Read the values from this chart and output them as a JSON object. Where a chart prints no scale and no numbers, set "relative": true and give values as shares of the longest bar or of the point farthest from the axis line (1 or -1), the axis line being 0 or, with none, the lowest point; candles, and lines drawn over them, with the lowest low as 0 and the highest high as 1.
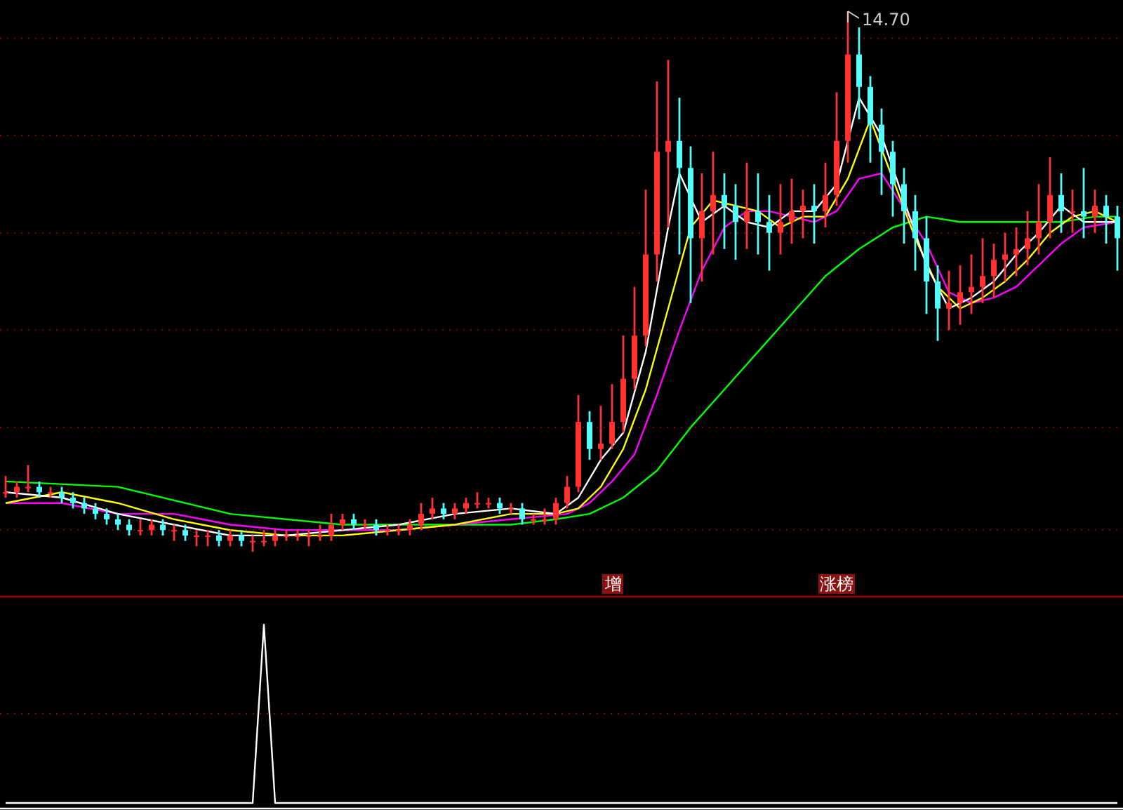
{
  "chart_data": [
    {
      "type": "candlestick",
      "relative": true,
      "ref_lines": [
        {
          "axis": "y",
          "value": 0.95,
          "color": "#8b0000",
          "line_style": "dotted"
        },
        {
          "axis": "y",
          "value": 0.77,
          "color": "#8b0000",
          "line_style": "dotted"
        },
        {
          "axis": "y",
          "value": 0.59,
          "color": "#8b0000",
          "line_style": "dotted"
        },
        {
          "axis": "y",
          "value": 0.41,
          "color": "#8b0000",
          "line_style": "dotted"
        },
        {
          "axis": "y",
          "value": 0.23,
          "color": "#8b0000",
          "line_style": "dotted"
        },
        {
          "axis": "y",
          "value": 0.04,
          "color": "#8b0000",
          "line_style": "dotted"
        }
      ],
      "categories": [
        null,
        null,
        null,
        null,
        null,
        null,
        null,
        null,
        null,
        null,
        null,
        null,
        null,
        null,
        null,
        null,
        null,
        null,
        null,
        null,
        null,
        null,
        null,
        null,
        null,
        null,
        null,
        null,
        null,
        null,
        null,
        null,
        null,
        null,
        null,
        null,
        null,
        null,
        null,
        null,
        null,
        null,
        null,
        null,
        null,
        null,
        null,
        null,
        null,
        null,
        null,
        null,
        null,
        null,
        null,
        null,
        null,
        null,
        null,
        null,
        null,
        null,
        null,
        null,
        null,
        null,
        null,
        null,
        null,
        null,
        null,
        null,
        null,
        null,
        null,
        null,
        null,
        null,
        null,
        null,
        null,
        null,
        null,
        null,
        null,
        null,
        null,
        null,
        null,
        null,
        null,
        null,
        null,
        null,
        null,
        null,
        null,
        null,
        null,
        null
      ],
      "annotations": [
        "14.70",
        "增",
        "涨榜"
      ],
      "series": [
        {
          "ohlc": [
            [
              0.11,
              0.14,
              0.1,
              0.11
            ],
            [
              0.11,
              0.13,
              0.1,
              0.12
            ],
            [
              0.12,
              0.16,
              0.11,
              0.12
            ],
            [
              0.12,
              0.13,
              0.1,
              0.11
            ],
            [
              0.11,
              0.12,
              0.1,
              0.11
            ],
            [
              0.11,
              0.12,
              0.09,
              0.1
            ],
            [
              0.1,
              0.11,
              0.08,
              0.09
            ],
            [
              0.09,
              0.1,
              0.07,
              0.08
            ],
            [
              0.08,
              0.09,
              0.06,
              0.07
            ],
            [
              0.07,
              0.08,
              0.05,
              0.06
            ],
            [
              0.06,
              0.07,
              0.04,
              0.05
            ],
            [
              0.05,
              0.06,
              0.03,
              0.04
            ],
            [
              0.04,
              0.06,
              0.03,
              0.04
            ],
            [
              0.04,
              0.06,
              0.03,
              0.05
            ],
            [
              0.05,
              0.06,
              0.03,
              0.04
            ],
            [
              0.04,
              0.05,
              0.02,
              0.04
            ],
            [
              0.04,
              0.05,
              0.02,
              0.03
            ],
            [
              0.03,
              0.04,
              0.01,
              0.03
            ],
            [
              0.03,
              0.04,
              0.01,
              0.03
            ],
            [
              0.03,
              0.04,
              0.01,
              0.02
            ],
            [
              0.02,
              0.04,
              0.01,
              0.03
            ],
            [
              0.03,
              0.04,
              0.01,
              0.02
            ],
            [
              0.02,
              0.03,
              0.0,
              0.02
            ],
            [
              0.02,
              0.04,
              0.01,
              0.02
            ],
            [
              0.02,
              0.04,
              0.01,
              0.03
            ],
            [
              0.03,
              0.04,
              0.02,
              0.03
            ],
            [
              0.03,
              0.04,
              0.02,
              0.03
            ],
            [
              0.03,
              0.04,
              0.01,
              0.03
            ],
            [
              0.03,
              0.05,
              0.02,
              0.03
            ],
            [
              0.03,
              0.07,
              0.02,
              0.05
            ],
            [
              0.05,
              0.07,
              0.04,
              0.06
            ],
            [
              0.06,
              0.07,
              0.04,
              0.05
            ],
            [
              0.05,
              0.06,
              0.04,
              0.05
            ],
            [
              0.05,
              0.06,
              0.03,
              0.04
            ],
            [
              0.04,
              0.05,
              0.03,
              0.04
            ],
            [
              0.04,
              0.05,
              0.03,
              0.04
            ],
            [
              0.04,
              0.06,
              0.03,
              0.05
            ],
            [
              0.05,
              0.09,
              0.04,
              0.07
            ],
            [
              0.07,
              0.1,
              0.06,
              0.08
            ],
            [
              0.08,
              0.09,
              0.06,
              0.07
            ],
            [
              0.07,
              0.09,
              0.06,
              0.08
            ],
            [
              0.08,
              0.1,
              0.07,
              0.09
            ],
            [
              0.09,
              0.11,
              0.08,
              0.09
            ],
            [
              0.09,
              0.1,
              0.08,
              0.09
            ],
            [
              0.09,
              0.1,
              0.07,
              0.08
            ],
            [
              0.08,
              0.09,
              0.07,
              0.08
            ],
            [
              0.08,
              0.09,
              0.05,
              0.06
            ],
            [
              0.06,
              0.07,
              0.05,
              0.06
            ],
            [
              0.06,
              0.08,
              0.05,
              0.06
            ],
            [
              0.06,
              0.1,
              0.05,
              0.09
            ],
            [
              0.09,
              0.14,
              0.08,
              0.12
            ],
            [
              0.12,
              0.29,
              0.11,
              0.24
            ],
            [
              0.24,
              0.26,
              0.17,
              0.19
            ],
            [
              0.19,
              0.27,
              0.17,
              0.2
            ],
            [
              0.2,
              0.31,
              0.19,
              0.24
            ],
            [
              0.24,
              0.4,
              0.22,
              0.32
            ],
            [
              0.32,
              0.49,
              0.3,
              0.4
            ],
            [
              0.4,
              0.67,
              0.38,
              0.55
            ],
            [
              0.55,
              0.87,
              0.5,
              0.74
            ],
            [
              0.74,
              0.91,
              0.6,
              0.76
            ],
            [
              0.76,
              0.84,
              0.55,
              0.71
            ],
            [
              0.71,
              0.75,
              0.46,
              0.58
            ],
            [
              0.58,
              0.7,
              0.5,
              0.63
            ],
            [
              0.63,
              0.74,
              0.55,
              0.66
            ],
            [
              0.66,
              0.7,
              0.56,
              0.64
            ],
            [
              0.64,
              0.68,
              0.54,
              0.61
            ],
            [
              0.61,
              0.72,
              0.56,
              0.63
            ],
            [
              0.63,
              0.7,
              0.55,
              0.61
            ],
            [
              0.61,
              0.66,
              0.52,
              0.59
            ],
            [
              0.59,
              0.68,
              0.55,
              0.61
            ],
            [
              0.61,
              0.69,
              0.57,
              0.63
            ],
            [
              0.63,
              0.67,
              0.58,
              0.64
            ],
            [
              0.64,
              0.68,
              0.57,
              0.63
            ],
            [
              0.63,
              0.72,
              0.6,
              0.66
            ],
            [
              0.66,
              0.85,
              0.64,
              0.76
            ],
            [
              0.76,
              1.0,
              0.72,
              0.92
            ],
            [
              0.92,
              0.97,
              0.8,
              0.86
            ],
            [
              0.86,
              0.88,
              0.72,
              0.79
            ],
            [
              0.79,
              0.82,
              0.66,
              0.74
            ],
            [
              0.74,
              0.76,
              0.62,
              0.68
            ],
            [
              0.68,
              0.71,
              0.57,
              0.63
            ],
            [
              0.63,
              0.66,
              0.52,
              0.58
            ],
            [
              0.58,
              0.62,
              0.44,
              0.5
            ],
            [
              0.5,
              0.53,
              0.39,
              0.45
            ],
            [
              0.45,
              0.52,
              0.41,
              0.46
            ],
            [
              0.46,
              0.53,
              0.42,
              0.48
            ],
            [
              0.48,
              0.55,
              0.44,
              0.49
            ],
            [
              0.49,
              0.58,
              0.46,
              0.51
            ],
            [
              0.51,
              0.57,
              0.47,
              0.54
            ],
            [
              0.54,
              0.59,
              0.5,
              0.55
            ],
            [
              0.55,
              0.6,
              0.51,
              0.56
            ],
            [
              0.56,
              0.63,
              0.53,
              0.58
            ],
            [
              0.58,
              0.68,
              0.55,
              0.61
            ],
            [
              0.61,
              0.73,
              0.58,
              0.66
            ],
            [
              0.66,
              0.7,
              0.59,
              0.63
            ],
            [
              0.63,
              0.67,
              0.59,
              0.63
            ],
            [
              0.63,
              0.71,
              0.58,
              0.62
            ],
            [
              0.62,
              0.67,
              0.59,
              0.64
            ],
            [
              0.64,
              0.66,
              0.57,
              0.62
            ],
            [
              0.62,
              0.64,
              0.52,
              0.58
            ]
          ],
          "colors": [
            "#ff3232",
            "#ff3232",
            "#ff3232",
            "#54fcfc",
            "#ff3232",
            "#54fcfc",
            "#54fcfc",
            "#54fcfc",
            "#54fcfc",
            "#54fcfc",
            "#54fcfc",
            "#54fcfc",
            "#ff3232",
            "#ff3232",
            "#54fcfc",
            "#ff3232",
            "#54fcfc",
            "#ff3232",
            "#ff3232",
            "#54fcfc",
            "#ff3232",
            "#54fcfc",
            "#ff3232",
            "#ff3232",
            "#ff3232",
            "#ff3232",
            "#ff3232",
            "#ff3232",
            "#ff3232",
            "#ff3232",
            "#ff3232",
            "#54fcfc",
            "#ff3232",
            "#54fcfc",
            "#ff3232",
            "#ff3232",
            "#ff3232",
            "#ff3232",
            "#ff3232",
            "#54fcfc",
            "#ff3232",
            "#ff3232",
            "#ff3232",
            "#ff3232",
            "#54fcfc",
            "#ff3232",
            "#54fcfc",
            "#ff3232",
            "#ff3232",
            "#ff3232",
            "#ff3232",
            "#ff3232",
            "#54fcfc",
            "#ff3232",
            "#ff3232",
            "#ff3232",
            "#ff3232",
            "#ff3232",
            "#ff3232",
            "#ff3232",
            "#54fcfc",
            "#54fcfc",
            "#ff3232",
            "#ff3232",
            "#54fcfc",
            "#54fcfc",
            "#ff3232",
            "#54fcfc",
            "#54fcfc",
            "#ff3232",
            "#ff3232",
            "#ff3232",
            "#54fcfc",
            "#ff3232",
            "#ff3232",
            "#ff3232",
            "#54fcfc",
            "#54fcfc",
            "#54fcfc",
            "#54fcfc",
            "#54fcfc",
            "#54fcfc",
            "#54fcfc",
            "#54fcfc",
            "#ff3232",
            "#ff3232",
            "#ff3232",
            "#ff3232",
            "#ff3232",
            "#ff3232",
            "#ff3232",
            "#ff3232",
            "#ff3232",
            "#ff3232",
            "#54fcfc",
            "#ff3232",
            "#54fcfc",
            "#ff3232",
            "#54fcfc",
            "#54fcfc"
          ]
        },
        {
          "type": "line",
          "color": "#00ff00",
          "values": [
            0.13,
            null,
            null,
            null,
            null,
            null,
            null,
            null,
            null,
            null,
            0.12,
            null,
            null,
            null,
            null,
            null,
            null,
            null,
            null,
            null,
            0.07,
            null,
            null,
            null,
            null,
            null,
            null,
            null,
            null,
            null,
            0.05,
            null,
            null,
            null,
            null,
            null,
            null,
            null,
            null,
            null,
            0.05,
            null,
            null,
            null,
            null,
            0.05,
            null,
            null,
            null,
            0.06,
            null,
            null,
            0.07,
            null,
            null,
            0.1,
            null,
            null,
            0.15,
            null,
            null,
            0.23,
            null,
            null,
            0.3,
            null,
            null,
            0.37,
            null,
            null,
            0.44,
            null,
            null,
            0.51,
            null,
            null,
            0.56,
            null,
            null,
            0.6,
            null,
            null,
            0.62,
            null,
            null,
            0.61,
            null,
            null,
            0.61,
            null,
            null,
            0.61,
            null,
            null,
            0.61,
            null,
            null,
            0.62,
            null,
            0.62
          ]
        },
        {
          "type": "line",
          "color": "#ff00ff",
          "values": [
            0.09,
            null,
            null,
            null,
            null,
            0.09,
            null,
            null,
            null,
            null,
            0.07,
            null,
            null,
            null,
            null,
            0.07,
            null,
            null,
            null,
            null,
            0.05,
            null,
            null,
            null,
            null,
            0.04,
            null,
            null,
            null,
            null,
            0.04,
            null,
            null,
            null,
            null,
            0.04,
            null,
            null,
            null,
            null,
            0.05,
            null,
            null,
            null,
            null,
            0.06,
            null,
            null,
            null,
            null,
            0.07,
            null,
            0.09,
            null,
            0.13,
            null,
            0.18,
            null,
            0.29,
            null,
            0.41,
            null,
            0.52,
            null,
            0.6,
            null,
            0.63,
            null,
            0.63,
            null,
            0.62,
            null,
            0.61,
            null,
            0.63,
            null,
            0.69,
            null,
            0.7,
            null,
            null,
            null,
            0.57,
            null,
            0.48,
            null,
            0.46,
            null,
            0.47,
            null,
            0.49,
            null,
            0.53,
            null,
            0.57,
            null,
            0.6,
            null,
            null,
            0.61
          ]
        },
        {
          "type": "line",
          "color": "#ffff00",
          "values": [
            0.09,
            null,
            null,
            null,
            null,
            0.11,
            null,
            null,
            null,
            null,
            0.09,
            null,
            null,
            null,
            null,
            0.06,
            null,
            null,
            null,
            null,
            0.04,
            null,
            null,
            null,
            null,
            0.03,
            null,
            null,
            null,
            null,
            0.03,
            null,
            null,
            null,
            null,
            0.04,
            null,
            null,
            null,
            null,
            0.05,
            null,
            null,
            null,
            null,
            0.07,
            null,
            null,
            null,
            0.07,
            null,
            0.08,
            null,
            0.12,
            null,
            0.19,
            null,
            0.3,
            null,
            0.45,
            null,
            0.6,
            null,
            0.65,
            null,
            0.64,
            null,
            0.63,
            null,
            0.6,
            null,
            0.62,
            null,
            0.62,
            null,
            0.69,
            null,
            0.8,
            null,
            null,
            null,
            0.58,
            null,
            0.49,
            null,
            0.45,
            null,
            0.47,
            null,
            0.5,
            null,
            0.54,
            null,
            0.59,
            null,
            0.62,
            null,
            0.63,
            null,
            0.61
          ]
        },
        {
          "type": "line",
          "color": "#ffffff",
          "values": [
            0.11,
            null,
            null,
            null,
            null,
            0.1,
            null,
            null,
            null,
            null,
            0.07,
            null,
            null,
            null,
            null,
            0.05,
            null,
            null,
            null,
            null,
            0.03,
            null,
            null,
            null,
            null,
            0.03,
            null,
            null,
            null,
            null,
            0.04,
            null,
            null,
            null,
            null,
            0.05,
            null,
            null,
            null,
            null,
            0.07,
            null,
            null,
            null,
            null,
            0.08,
            null,
            null,
            null,
            0.07,
            null,
            0.1,
            null,
            0.17,
            null,
            0.22,
            null,
            0.37,
            null,
            0.6,
            0.7,
            null,
            0.61,
            null,
            0.64,
            null,
            0.61,
            null,
            0.6,
            null,
            0.63,
            null,
            0.63,
            null,
            0.68,
            null,
            0.84,
            null,
            0.77,
            null,
            null,
            null,
            0.53,
            null,
            0.45,
            null,
            0.47,
            null,
            0.5,
            null,
            0.55,
            null,
            0.59,
            null,
            0.64,
            null,
            0.61,
            null,
            null,
            0.61
          ]
        }
      ]
    },
    {
      "type": "line",
      "relative": true,
      "ref_lines": [
        {
          "axis": "y",
          "value": 0.5,
          "color": "#8b0000",
          "line_style": "dotted"
        }
      ],
      "categories": [
        null,
        null,
        null,
        null,
        null,
        null,
        null,
        null,
        null,
        null,
        null,
        null,
        null,
        null,
        null,
        null,
        null,
        null,
        null,
        null,
        null,
        null,
        null,
        null,
        null,
        null,
        null,
        null,
        null,
        null,
        null,
        null,
        null,
        null,
        null,
        null,
        null,
        null,
        null,
        null,
        null,
        null,
        null,
        null,
        null,
        null,
        null,
        null,
        null,
        null,
        null,
        null,
        null,
        null,
        null,
        null,
        null,
        null,
        null,
        null,
        null,
        null,
        null,
        null,
        null,
        null,
        null,
        null,
        null,
        null,
        null,
        null,
        null,
        null,
        null,
        null,
        null,
        null,
        null,
        null,
        null,
        null,
        null,
        null,
        null,
        null,
        null,
        null,
        null,
        null,
        null,
        null,
        null,
        null,
        null,
        null,
        null,
        null,
        null,
        null
      ],
      "series": [
        {
          "color": "#ffffff",
          "values": [
            0,
            0,
            0,
            0,
            0,
            0,
            0,
            0,
            0,
            0,
            0,
            0,
            0,
            0,
            0,
            0,
            0,
            0,
            0,
            0,
            0,
            0,
            0,
            1,
            0,
            0,
            0,
            0,
            0,
            0,
            0,
            0,
            0,
            0,
            0,
            0,
            0,
            0,
            0,
            0,
            0,
            0,
            0,
            0,
            0,
            0,
            0,
            0,
            0,
            0,
            0,
            0,
            0,
            0,
            0,
            0,
            0,
            0,
            0,
            0,
            0,
            0,
            0,
            0,
            0,
            0,
            0,
            0,
            0,
            0,
            0,
            0,
            0,
            0,
            0,
            0,
            0,
            0,
            0,
            0,
            0,
            0,
            0,
            0,
            0,
            0,
            0,
            0,
            0,
            0,
            0,
            0,
            0,
            0,
            0,
            0,
            0,
            0,
            0,
            0
          ]
        }
      ]
    }
  ]
}
